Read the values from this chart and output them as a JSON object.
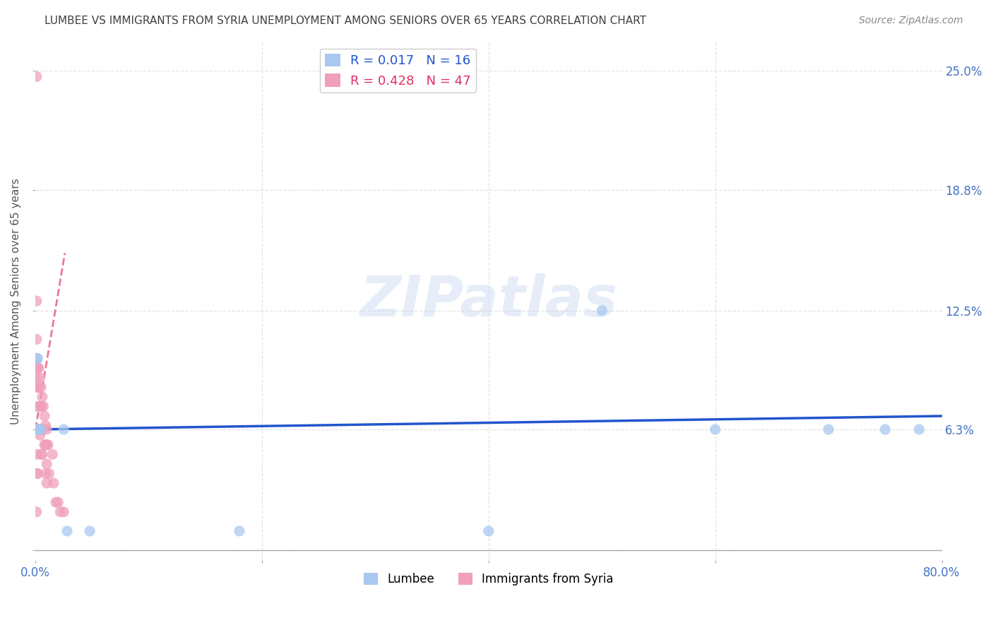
{
  "title": "LUMBEE VS IMMIGRANTS FROM SYRIA UNEMPLOYMENT AMONG SENIORS OVER 65 YEARS CORRELATION CHART",
  "source": "Source: ZipAtlas.com",
  "ylabel": "Unemployment Among Seniors over 65 years",
  "xlim": [
    0.0,
    0.8
  ],
  "ylim": [
    -0.005,
    0.265
  ],
  "xticks": [
    0.0,
    0.2,
    0.4,
    0.6,
    0.8
  ],
  "xticklabels": [
    "0.0%",
    "",
    "",
    "",
    "80.0%"
  ],
  "ytick_vals": [
    0.0,
    0.063,
    0.125,
    0.188,
    0.25
  ],
  "ytick_labels": [
    "",
    "6.3%",
    "12.5%",
    "18.8%",
    "25.0%"
  ],
  "watermark_text": "ZIPatlas",
  "lumbee_color": "#a8c8f0",
  "syria_color": "#f0a0b8",
  "lumbee_R": 0.017,
  "lumbee_N": 16,
  "syria_R": 0.428,
  "syria_N": 47,
  "lumbee_scatter_x": [
    0.001,
    0.001,
    0.002,
    0.002,
    0.003,
    0.005,
    0.025,
    0.028,
    0.048,
    0.18,
    0.4,
    0.5,
    0.6,
    0.7,
    0.75,
    0.78
  ],
  "lumbee_scatter_y": [
    0.063,
    0.1,
    0.1,
    0.063,
    0.063,
    0.063,
    0.063,
    0.01,
    0.01,
    0.01,
    0.01,
    0.125,
    0.063,
    0.063,
    0.063,
    0.063
  ],
  "syria_scatter_x": [
    0.001,
    0.001,
    0.001,
    0.001,
    0.001,
    0.001,
    0.001,
    0.001,
    0.001,
    0.001,
    0.001,
    0.001,
    0.002,
    0.002,
    0.002,
    0.002,
    0.003,
    0.003,
    0.003,
    0.004,
    0.004,
    0.004,
    0.005,
    0.005,
    0.005,
    0.005,
    0.006,
    0.006,
    0.006,
    0.007,
    0.008,
    0.008,
    0.009,
    0.009,
    0.009,
    0.01,
    0.01,
    0.01,
    0.01,
    0.011,
    0.012,
    0.015,
    0.016,
    0.018,
    0.02,
    0.022,
    0.025
  ],
  "syria_scatter_y": [
    0.247,
    0.13,
    0.11,
    0.1,
    0.095,
    0.09,
    0.085,
    0.075,
    0.063,
    0.05,
    0.04,
    0.02,
    0.095,
    0.085,
    0.063,
    0.04,
    0.095,
    0.085,
    0.063,
    0.09,
    0.075,
    0.06,
    0.085,
    0.075,
    0.063,
    0.05,
    0.08,
    0.063,
    0.05,
    0.075,
    0.07,
    0.055,
    0.065,
    0.055,
    0.04,
    0.063,
    0.055,
    0.045,
    0.035,
    0.055,
    0.04,
    0.05,
    0.035,
    0.025,
    0.025,
    0.02,
    0.02
  ],
  "lumbee_line_color": "#2255cc",
  "lumbee_line_y_start": 0.063,
  "lumbee_line_y_end": 0.07,
  "syria_line_color": "#e03060",
  "syria_line_x_start": 0.0,
  "syria_line_x_end": 0.026,
  "syria_line_y_start": 0.063,
  "syria_line_y_end": 0.155,
  "grid_color": "#dddddd",
  "tick_label_color": "#4472c4",
  "title_color": "#404040",
  "title_fontsize": 11,
  "source_fontsize": 10,
  "ylabel_fontsize": 11,
  "scatter_size": 120,
  "scatter_alpha": 0.75
}
